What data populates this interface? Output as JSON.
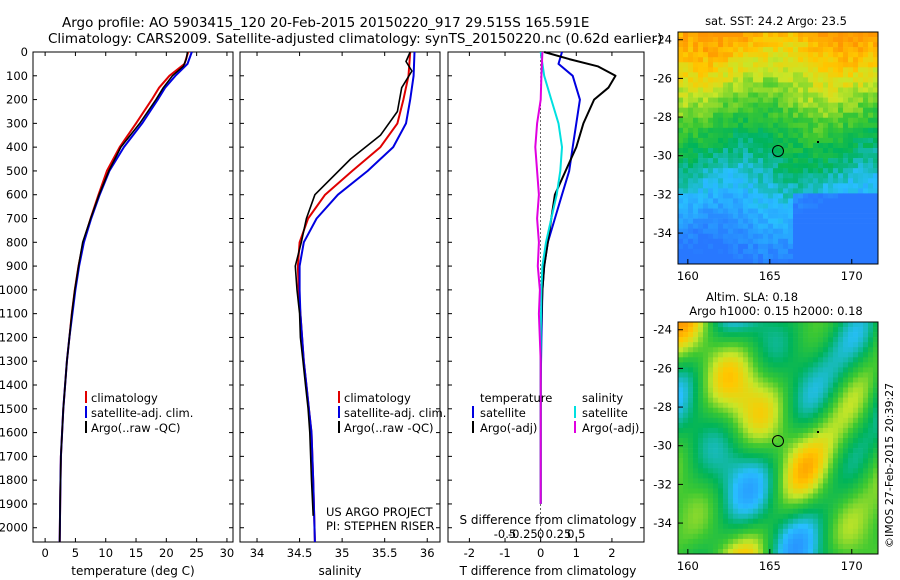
{
  "title_line1": "Argo profile: AO 5903415_120 20-Feb-2015 20150220_917 29.515S 165.591E",
  "title_line2": "Climatology: CARS2009. Satellite-adjusted climatology: synTS_20150220.nc (0.62d earlier)",
  "depth_ticks": [
    "0",
    "100",
    "200",
    "300",
    "400",
    "500",
    "600",
    "700",
    "800",
    "900",
    "1000",
    "1100",
    "1200",
    "1300",
    "1400",
    "1500",
    "1600",
    "1700",
    "1800",
    "1900",
    "2000"
  ],
  "panels": {
    "temperature": {
      "xlabel": "temperature (deg C)",
      "xticks": [
        "0",
        "5",
        "10",
        "15",
        "20",
        "25",
        "30"
      ],
      "legend": [
        "climatology",
        "satellite-adj. clim.",
        "Argo(..raw -QC)"
      ]
    },
    "salinity": {
      "xlabel": "salinity",
      "xticks": [
        "34",
        "34.5",
        "35",
        "35.5",
        "36"
      ],
      "legend": [
        "climatology",
        "satellite-adj. clim.",
        "Argo(..raw -QC)"
      ],
      "project_line1": "US ARGO PROJECT",
      "project_line2": "PI: STEPHEN RISER"
    },
    "difference": {
      "xlabel_top": "S difference from climatology",
      "xticks_top": [
        "-0.5",
        "-0.25",
        "0",
        "0.25",
        "0.5"
      ],
      "xlabel_bottom": "T difference from climatology",
      "xticks_bottom": [
        "-2",
        "-1",
        "0",
        "1",
        "2"
      ],
      "legend_temp_title": "temperature",
      "legend_sal_title": "salinity",
      "legend_temp": [
        "satellite",
        "Argo(-adj)"
      ],
      "legend_sal": [
        "satellite",
        "Argo(-adj)"
      ]
    }
  },
  "map_sst": {
    "title": "sat. SST: 24.2  Argo: 23.5",
    "yticks": [
      "-24",
      "-26",
      "-28",
      "-30",
      "-32",
      "-34"
    ],
    "xticks": [
      "160",
      "165",
      "170"
    ]
  },
  "map_sla": {
    "title_line1": "Altim. SLA: 0.18",
    "title_line2": "Argo h1000: 0.15  h2000: 0.18",
    "yticks": [
      "-24",
      "-26",
      "-28",
      "-30",
      "-32",
      "-34"
    ],
    "xticks": [
      "160",
      "165",
      "170"
    ]
  },
  "credit": "©IMOS 27-Feb-2015 20:39:27",
  "colors": {
    "climatology": "#e00000",
    "satellite": "#0000e0",
    "argo": "#000000",
    "sal_satellite": "#00e0e0",
    "sal_argo": "#e000e0"
  },
  "chart_data": [
    {
      "type": "line",
      "panel": "temperature",
      "xlabel": "temperature (deg C)",
      "ylabel": "",
      "xlim": [
        -2,
        31
      ],
      "ylim": [
        2060,
        0
      ],
      "series": [
        {
          "name": "climatology",
          "x": [
            23.6,
            23.0,
            20.5,
            18.8,
            17.6,
            15.0,
            12.3,
            10.2,
            8.8,
            7.5,
            6.3,
            5.5,
            4.9,
            4.4,
            4.0,
            3.6,
            3.3,
            3.0,
            2.8,
            2.6,
            2.5,
            2.4
          ],
          "y": [
            0,
            50,
            100,
            150,
            200,
            300,
            400,
            500,
            600,
            700,
            800,
            900,
            1000,
            1100,
            1200,
            1300,
            1400,
            1500,
            1600,
            1700,
            1850,
            2060
          ]
        },
        {
          "name": "satellite-adj. clim.",
          "x": [
            24.2,
            23.5,
            21.5,
            19.8,
            18.6,
            16.0,
            13.0,
            10.6,
            9.0,
            7.6,
            6.4,
            5.6,
            5.0,
            4.5,
            4.0,
            3.6,
            3.3,
            3.0,
            2.8,
            2.6,
            2.5,
            2.4
          ],
          "y": [
            0,
            50,
            100,
            150,
            200,
            300,
            400,
            500,
            600,
            700,
            800,
            900,
            1000,
            1100,
            1200,
            1300,
            1400,
            1500,
            1600,
            1700,
            1850,
            2060
          ]
        },
        {
          "name": "Argo(..raw -QC)",
          "x": [
            23.5,
            23.3,
            22.8,
            21.0,
            19.5,
            18.3,
            15.6,
            12.5,
            10.5,
            8.9,
            7.5,
            6.2,
            5.5,
            4.9,
            4.4,
            4.0,
            3.6,
            3.3,
            3.0,
            2.8,
            2.6,
            2.5,
            2.4
          ],
          "y": [
            0,
            30,
            60,
            100,
            150,
            200,
            300,
            400,
            500,
            600,
            700,
            800,
            900,
            1000,
            1100,
            1200,
            1300,
            1400,
            1500,
            1600,
            1700,
            1850,
            2060
          ]
        }
      ]
    },
    {
      "type": "line",
      "panel": "salinity",
      "xlabel": "salinity",
      "ylabel": "",
      "xlim": [
        33.8,
        36.15
      ],
      "ylim": [
        2060,
        0
      ],
      "series": [
        {
          "name": "climatology",
          "x": [
            35.8,
            35.78,
            35.72,
            35.65,
            35.45,
            35.12,
            34.8,
            34.6,
            34.5,
            34.48,
            34.49,
            34.51,
            34.53,
            34.55,
            34.58,
            34.61,
            34.64,
            34.66,
            34.68
          ],
          "y": [
            0,
            100,
            200,
            300,
            400,
            500,
            600,
            700,
            800,
            900,
            1000,
            1100,
            1200,
            1300,
            1400,
            1500,
            1600,
            1800,
            2060
          ]
        },
        {
          "name": "satellite-adj. clim.",
          "x": [
            35.85,
            35.84,
            35.8,
            35.75,
            35.6,
            35.3,
            34.95,
            34.7,
            34.55,
            34.5,
            34.5,
            34.51,
            34.53,
            34.55,
            34.58,
            34.61,
            34.64,
            34.66,
            34.68
          ],
          "y": [
            0,
            100,
            200,
            300,
            400,
            500,
            600,
            700,
            800,
            900,
            1000,
            1100,
            1200,
            1300,
            1400,
            1500,
            1600,
            1800,
            2060
          ]
        },
        {
          "name": "Argo(..raw -QC)",
          "x": [
            35.8,
            35.75,
            35.82,
            35.7,
            35.65,
            35.45,
            35.1,
            34.68,
            34.58,
            34.52,
            34.45,
            34.47,
            34.5,
            34.51,
            34.54,
            34.57,
            34.6,
            34.62,
            34.64,
            34.66
          ],
          "y": [
            0,
            40,
            80,
            150,
            250,
            350,
            450,
            600,
            700,
            800,
            900,
            1000,
            1100,
            1200,
            1300,
            1400,
            1500,
            1600,
            1800,
            1950
          ]
        }
      ]
    },
    {
      "type": "line",
      "panel": "difference",
      "xlabel": "T difference from climatology",
      "ylabel": "",
      "xlim": [
        -2.6,
        2.9
      ],
      "ylim": [
        2060,
        0
      ],
      "series": [
        {
          "name": "temperature satellite",
          "x": [
            0.6,
            0.5,
            0.9,
            1.1,
            1.0,
            0.9,
            0.8,
            0.6,
            0.4,
            0.2,
            0.1,
            0.05,
            0.02,
            0.0,
            0.0,
            0.0
          ],
          "y": [
            0,
            50,
            100,
            200,
            300,
            400,
            500,
            600,
            700,
            800,
            900,
            1000,
            1200,
            1400,
            1700,
            1900
          ]
        },
        {
          "name": "temperature Argo(-adj)",
          "x": [
            0.1,
            0.8,
            1.6,
            2.1,
            1.9,
            1.5,
            1.2,
            1.0,
            0.7,
            0.4,
            0.3,
            0.2,
            0.1,
            0.05,
            0.0,
            0.0,
            0.0
          ],
          "y": [
            0,
            30,
            60,
            100,
            150,
            200,
            300,
            400,
            500,
            600,
            700,
            800,
            900,
            1000,
            1200,
            1500,
            1900
          ]
        },
        {
          "name": "salinity satellite",
          "x": [
            0.0,
            0.1,
            0.3,
            0.5,
            0.6,
            0.55,
            0.45,
            0.3,
            0.15,
            0.05,
            0.02,
            0.0,
            0.0
          ],
          "y": [
            0,
            100,
            200,
            300,
            400,
            500,
            600,
            700,
            800,
            900,
            1000,
            1200,
            1900
          ]
        },
        {
          "name": "salinity Argo(-adj)",
          "x": [
            0.05,
            0.02,
            0.0,
            -0.1,
            -0.15,
            -0.1,
            -0.05,
            -0.1,
            -0.05,
            -0.08,
            -0.02,
            -0.05,
            0.0,
            0.0
          ],
          "y": [
            0,
            100,
            200,
            300,
            400,
            500,
            600,
            700,
            800,
            900,
            1000,
            1100,
            1300,
            1900
          ]
        }
      ]
    }
  ]
}
